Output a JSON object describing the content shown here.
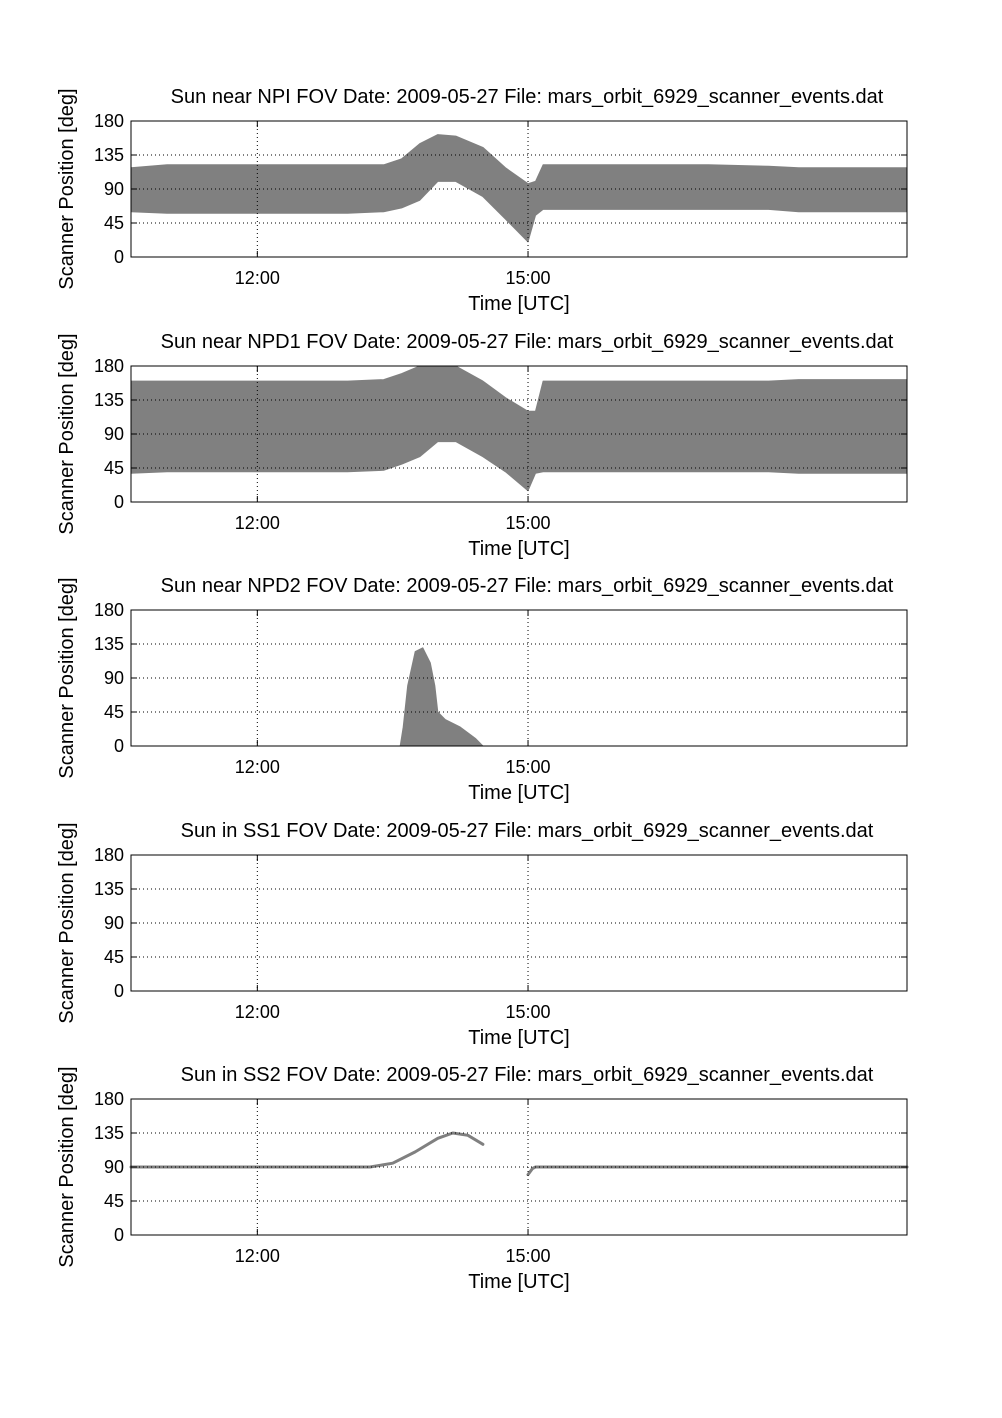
{
  "figure": {
    "background": "#ffffff",
    "fill_color": "#808080",
    "grid": "dotted",
    "x_range": [
      "10:36",
      "19:12"
    ],
    "x_ticks": [
      "12:00",
      "15:00"
    ],
    "y_range": [
      0,
      180
    ],
    "y_ticks": [
      0,
      45,
      90,
      135,
      180
    ]
  },
  "chart_data": [
    {
      "type": "area",
      "title": "Sun near NPI FOV   Date: 2009-05-27   File: mars_orbit_6929_scanner_events.dat",
      "xlabel": "Time [UTC]",
      "ylabel": "Scanner Position [deg]",
      "x_tick_labels": [
        "12:00",
        "15:00"
      ],
      "y_tick_labels": [
        "0",
        "45",
        "90",
        "135",
        "180"
      ],
      "ylim": [
        0,
        180
      ],
      "grid": true,
      "series": [
        {
          "x": [
            "10:36",
            "11:00",
            "12:00",
            "13:00",
            "13:24",
            "13:36",
            "13:48",
            "14:00",
            "14:12",
            "14:30",
            "14:45",
            "15:00",
            "15:05",
            "15:10",
            "16:00",
            "17:00",
            "17:40",
            "18:00",
            "19:12"
          ],
          "lower": [
            60,
            58,
            58,
            58,
            60,
            65,
            75,
            100,
            100,
            80,
            50,
            20,
            55,
            63,
            63,
            63,
            63,
            60,
            60
          ],
          "upper": [
            118,
            122,
            122,
            122,
            122,
            130,
            150,
            162,
            160,
            145,
            118,
            97,
            100,
            122,
            122,
            122,
            120,
            118,
            118
          ]
        }
      ]
    },
    {
      "type": "area",
      "title": "Sun near NPD1 FOV   Date: 2009-05-27   File: mars_orbit_6929_scanner_events.dat",
      "xlabel": "Time [UTC]",
      "ylabel": "Scanner Position [deg]",
      "x_tick_labels": [
        "12:00",
        "15:00"
      ],
      "y_tick_labels": [
        "0",
        "45",
        "90",
        "135",
        "180"
      ],
      "ylim": [
        0,
        180
      ],
      "grid": true,
      "series": [
        {
          "x": [
            "10:36",
            "11:00",
            "12:00",
            "13:00",
            "13:24",
            "13:36",
            "13:48",
            "14:00",
            "14:12",
            "14:30",
            "14:45",
            "15:00",
            "15:05",
            "15:10",
            "16:00",
            "17:00",
            "17:40",
            "18:00",
            "19:12"
          ],
          "lower": [
            38,
            40,
            40,
            40,
            42,
            50,
            60,
            80,
            80,
            60,
            40,
            15,
            38,
            40,
            40,
            40,
            40,
            38,
            38
          ],
          "upper": [
            160,
            160,
            160,
            160,
            162,
            170,
            180,
            180,
            180,
            160,
            138,
            120,
            120,
            160,
            160,
            160,
            160,
            162,
            162
          ]
        }
      ]
    },
    {
      "type": "area",
      "title": "Sun near NPD2 FOV   Date: 2009-05-27   File: mars_orbit_6929_scanner_events.dat",
      "xlabel": "Time [UTC]",
      "ylabel": "Scanner Position [deg]",
      "x_tick_labels": [
        "12:00",
        "15:00"
      ],
      "y_tick_labels": [
        "0",
        "45",
        "90",
        "135",
        "180"
      ],
      "ylim": [
        0,
        180
      ],
      "grid": true,
      "series": [
        {
          "x": [
            "13:35",
            "13:37",
            "13:40",
            "13:45",
            "13:50",
            "13:55",
            "13:58",
            "14:00",
            "14:05",
            "14:15",
            "14:25",
            "14:30"
          ],
          "lower": [
            0,
            0,
            0,
            0,
            0,
            0,
            0,
            0,
            0,
            0,
            0,
            0
          ],
          "upper": [
            0,
            25,
            80,
            125,
            130,
            110,
            80,
            45,
            35,
            25,
            10,
            0
          ]
        }
      ]
    },
    {
      "type": "area",
      "title": "Sun in SS1 FOV   Date: 2009-05-27   File: mars_orbit_6929_scanner_events.dat",
      "xlabel": "Time [UTC]",
      "ylabel": "Scanner Position [deg]",
      "x_tick_labels": [
        "12:00",
        "15:00"
      ],
      "y_tick_labels": [
        "0",
        "45",
        "90",
        "135",
        "180"
      ],
      "ylim": [
        0,
        180
      ],
      "grid": true,
      "series": []
    },
    {
      "type": "line",
      "title": "Sun in SS2 FOV   Date: 2009-05-27   File: mars_orbit_6929_scanner_events.dat",
      "xlabel": "Time [UTC]",
      "ylabel": "Scanner Position [deg]",
      "x_tick_labels": [
        "12:00",
        "15:00"
      ],
      "y_tick_labels": [
        "0",
        "45",
        "90",
        "135",
        "180"
      ],
      "ylim": [
        0,
        180
      ],
      "grid": true,
      "series": [
        {
          "x": [
            "10:36",
            "12:00",
            "13:00",
            "13:15",
            "13:30",
            "13:45",
            "14:00",
            "14:10",
            "14:20",
            "14:30"
          ],
          "values": [
            90,
            90,
            90,
            90,
            95,
            110,
            128,
            135,
            132,
            120
          ]
        },
        {
          "x": [
            "15:00",
            "15:03",
            "15:05",
            "17:00",
            "19:12"
          ],
          "values": [
            80,
            88,
            90,
            90,
            90
          ]
        }
      ]
    }
  ]
}
